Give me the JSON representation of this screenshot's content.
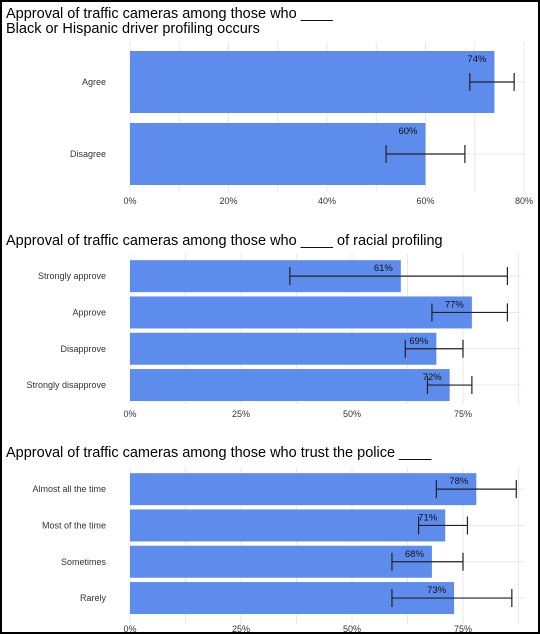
{
  "chart_data": [
    {
      "type": "bar",
      "orientation": "horizontal",
      "title_lines": [
        "Approval of traffic cameras among those who ____",
        "Black or Hispanic driver profiling occurs"
      ],
      "categories": [
        "Agree",
        "Disagree"
      ],
      "values": [
        74,
        60
      ],
      "error_low": [
        69,
        52
      ],
      "error_high": [
        78,
        68
      ],
      "data_labels": [
        "74%",
        "60%"
      ],
      "xlim": [
        0,
        80
      ],
      "ticks": [
        0,
        20,
        40,
        60,
        80
      ],
      "tick_labels": [
        "0%",
        "20%",
        "40%",
        "60%",
        "80%"
      ],
      "grid": true,
      "legend": "none"
    },
    {
      "type": "bar",
      "orientation": "horizontal",
      "title_lines": [
        "Approval of traffic cameras among those who ____ of racial profiling"
      ],
      "categories": [
        "Strongly approve",
        "Approve",
        "Disapprove",
        "Strongly disapprove"
      ],
      "values": [
        61,
        77,
        69,
        72
      ],
      "error_low": [
        36,
        68,
        62,
        67
      ],
      "error_high": [
        85,
        85,
        75,
        77
      ],
      "data_labels": [
        "61%",
        "77%",
        "69%",
        "72%"
      ],
      "xlim": [
        0,
        88
      ],
      "ticks": [
        0,
        25,
        50,
        75
      ],
      "tick_labels": [
        "0%",
        "25%",
        "50%",
        "75%"
      ],
      "grid": true,
      "legend": "none"
    },
    {
      "type": "bar",
      "orientation": "horizontal",
      "title_lines": [
        "Approval of traffic cameras among those who trust the police ____"
      ],
      "categories": [
        "Almost all the time",
        "Most of the time",
        "Sometimes",
        "Rarely"
      ],
      "values": [
        78,
        71,
        68,
        73
      ],
      "error_low": [
        69,
        65,
        59,
        59
      ],
      "error_high": [
        87,
        76,
        75,
        86
      ],
      "data_labels": [
        "78%",
        "71%",
        "68%",
        "73%"
      ],
      "xlim": [
        0,
        89
      ],
      "ticks": [
        0,
        25,
        50,
        75
      ],
      "tick_labels": [
        "0%",
        "25%",
        "50%",
        "75%"
      ],
      "grid": true,
      "legend": "none"
    }
  ],
  "colors": {
    "bar": "#5e8ced",
    "error_bar": "#222222",
    "grid": "#e8e8e8",
    "text": "#333333"
  }
}
